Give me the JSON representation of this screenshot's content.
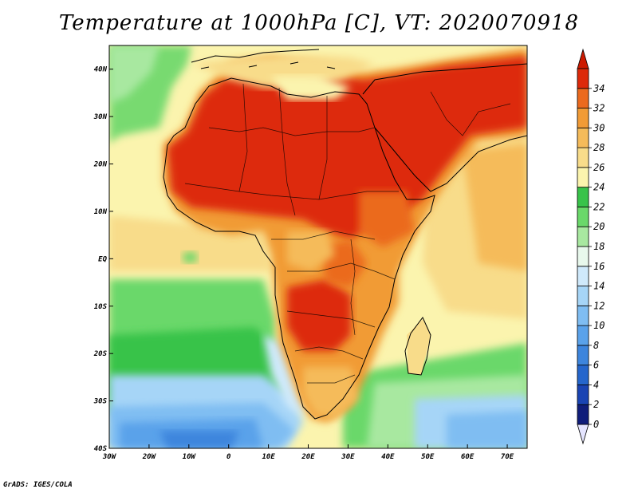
{
  "title": "Temperature at 1000hPa [C], VT: 2020070918",
  "footer": "GrADS: IGES/COLA",
  "map": {
    "lon_range": [
      -30,
      75
    ],
    "lat_range": [
      -40,
      45
    ],
    "x_ticks": [
      {
        "value": -30,
        "label": "30W"
      },
      {
        "value": -20,
        "label": "20W"
      },
      {
        "value": -10,
        "label": "10W"
      },
      {
        "value": 0,
        "label": "0"
      },
      {
        "value": 10,
        "label": "10E"
      },
      {
        "value": 20,
        "label": "20E"
      },
      {
        "value": 30,
        "label": "30E"
      },
      {
        "value": 40,
        "label": "40E"
      },
      {
        "value": 50,
        "label": "50E"
      },
      {
        "value": 60,
        "label": "60E"
      },
      {
        "value": 70,
        "label": "70E"
      }
    ],
    "y_ticks": [
      {
        "value": 40,
        "label": "40N"
      },
      {
        "value": 30,
        "label": "30N"
      },
      {
        "value": 20,
        "label": "20N"
      },
      {
        "value": 10,
        "label": "10N"
      },
      {
        "value": 0,
        "label": "EQ"
      },
      {
        "value": -10,
        "label": "10S"
      },
      {
        "value": -20,
        "label": "20S"
      },
      {
        "value": -30,
        "label": "30S"
      },
      {
        "value": -40,
        "label": "40S"
      }
    ]
  },
  "colorbar": {
    "labels": [
      "0",
      "2",
      "4",
      "6",
      "8",
      "10",
      "12",
      "14",
      "16",
      "18",
      "20",
      "22",
      "24",
      "26",
      "28",
      "30",
      "32",
      "34"
    ],
    "colors": [
      "#101d7a",
      "#1a44b3",
      "#2566cc",
      "#3d85dd",
      "#5aa2ea",
      "#7fbdf2",
      "#a6d5f7",
      "#cfe9fb",
      "#e8f8ec",
      "#a8e8a0",
      "#6ad86a",
      "#38c34a",
      "#fbf4ae",
      "#f8dc8a",
      "#f5bb5a",
      "#f19b36",
      "#eb6a1e",
      "#dd2a0a"
    ],
    "under_color": "#e5e5ff",
    "over_color": "#cc1a00"
  }
}
